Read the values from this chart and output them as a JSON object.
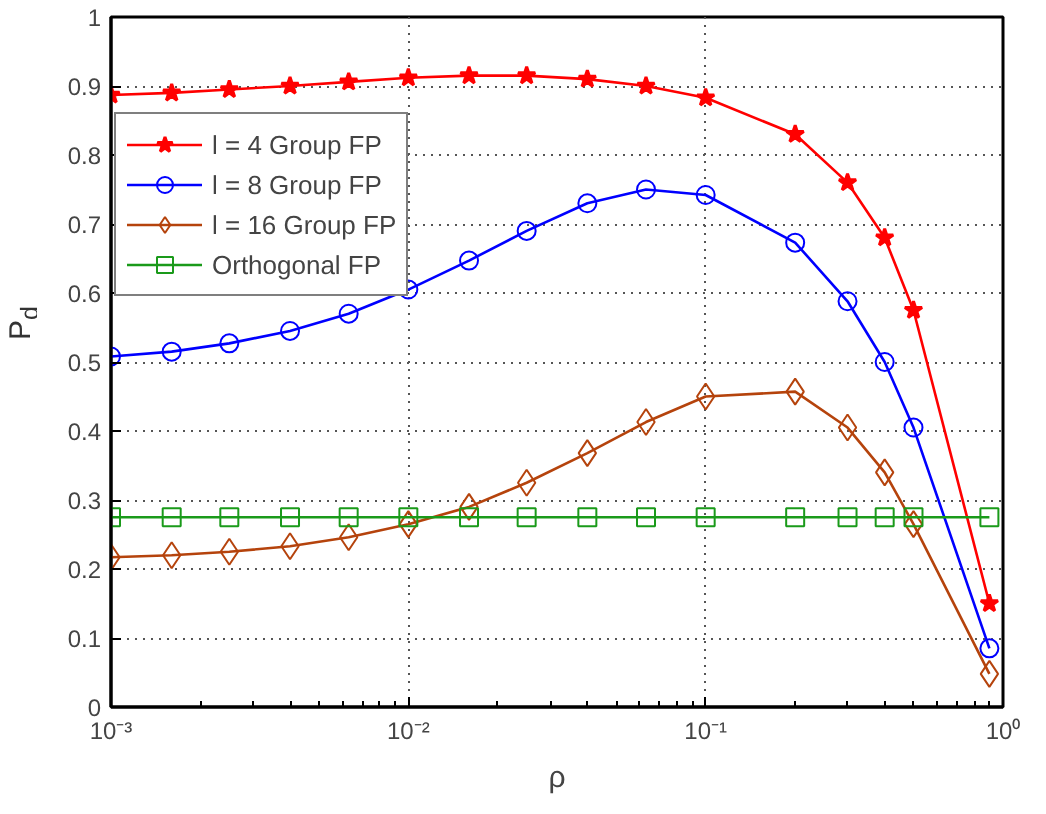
{
  "chart_data": {
    "type": "line",
    "xlabel": "ρ",
    "ylabel": "P$_{d}$",
    "log": "x",
    "grid": true,
    "legend": "top left",
    "x": [
      0.001,
      0.0016,
      0.0025,
      0.004,
      0.0063,
      0.01,
      0.016,
      0.025,
      0.04,
      0.063,
      0.1,
      0.2,
      0.3,
      0.4,
      0.5,
      0.9
    ],
    "xlim": [
      0.001,
      1
    ],
    "xticks": [
      {
        "value": 0.001,
        "label": "10⁻³"
      },
      {
        "value": 0.01,
        "label": "10⁻²"
      },
      {
        "value": 0.1,
        "label": "10⁻¹"
      },
      {
        "value": 1,
        "label": "10⁰"
      }
    ],
    "ylim": [
      0,
      1
    ],
    "yticks": [
      0,
      0.1,
      0.2,
      0.3,
      0.4,
      0.5,
      0.6,
      0.7,
      0.8,
      0.9,
      1
    ],
    "series": [
      {
        "name": "l = 4 Group FP",
        "color": "#ff0000",
        "marker": "star",
        "values": [
          0.887,
          0.89,
          0.895,
          0.9,
          0.906,
          0.912,
          0.915,
          0.915,
          0.91,
          0.9,
          0.883,
          0.83,
          0.76,
          0.68,
          0.575,
          0.15
        ]
      },
      {
        "name": "l = 8 Group FP",
        "color": "#0000ff",
        "marker": "circle",
        "values": [
          0.508,
          0.515,
          0.527,
          0.545,
          0.57,
          0.605,
          0.647,
          0.69,
          0.73,
          0.75,
          0.742,
          0.673,
          0.588,
          0.5,
          0.405,
          0.085
        ]
      },
      {
        "name": "l = 16 Group FP",
        "color": "#b5430c",
        "marker": "diamond",
        "values": [
          0.217,
          0.22,
          0.225,
          0.233,
          0.246,
          0.265,
          0.29,
          0.325,
          0.368,
          0.413,
          0.45,
          0.457,
          0.405,
          0.34,
          0.265,
          0.048
        ]
      },
      {
        "name": "Orthogonal FP",
        "color": "#1a9a1a",
        "marker": "square",
        "values": [
          0.275,
          0.275,
          0.275,
          0.275,
          0.275,
          0.275,
          0.275,
          0.275,
          0.275,
          0.275,
          0.275,
          0.275,
          0.275,
          0.275,
          0.275,
          0.275
        ]
      }
    ]
  }
}
